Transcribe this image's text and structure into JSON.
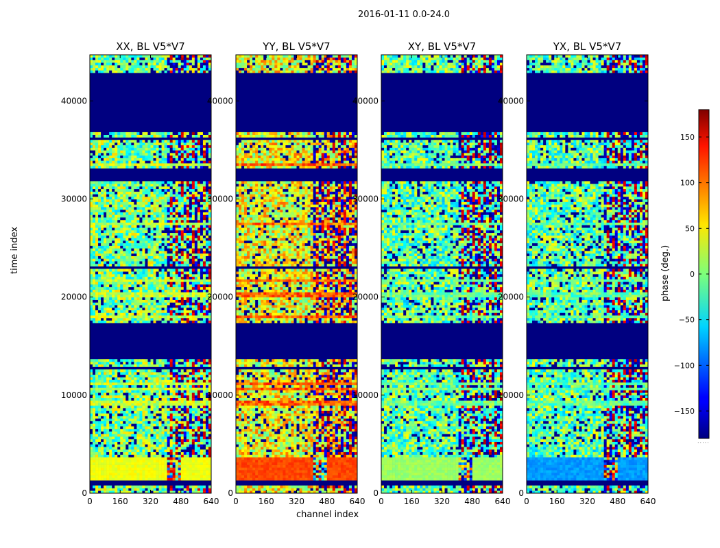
{
  "figure_title": "2016-01-11 0.0-24.0",
  "chart_data": {
    "type": "heatmap",
    "title": "2016-01-11 0.0-24.0",
    "xlabel": "channel index",
    "ylabel": "time index",
    "xlim": [
      0,
      640
    ],
    "ylim": [
      0,
      44700
    ],
    "xticks": [
      0,
      160,
      320,
      480,
      640
    ],
    "xtick_labels": [
      "0",
      "160",
      "320",
      "480",
      "640"
    ],
    "yticks": [
      0,
      10000,
      20000,
      30000,
      40000
    ],
    "ytick_labels": [
      "0",
      "10000",
      "20000",
      "30000",
      "40000"
    ],
    "panels": [
      {
        "title": "XX, BL V5*V7",
        "baseline": 0,
        "low_block_phase": 40,
        "stripe_phase": 25
      },
      {
        "title": "YY, BL V5*V7",
        "baseline": 40,
        "low_block_phase": 110,
        "stripe_phase": 100
      },
      {
        "title": "XY, BL V5*V7",
        "baseline": -10,
        "low_block_phase": 10,
        "stripe_phase": -5
      },
      {
        "title": "YX, BL V5*V7",
        "baseline": -10,
        "low_block_phase": -80,
        "stripe_phase": -10
      }
    ],
    "flagged_time_ranges": [
      [
        13600,
        17400
      ],
      [
        31800,
        33200
      ],
      [
        36700,
        42700
      ]
    ],
    "colorbar": {
      "label": "phase (deg.)",
      "range": [
        -180,
        180
      ],
      "ticks": [
        -150,
        -100,
        -50,
        0,
        50,
        100,
        150
      ],
      "tick_labels": [
        "−150",
        "−100",
        "−50",
        "0",
        "50",
        "100",
        "150"
      ],
      "colormap": "jet"
    }
  }
}
